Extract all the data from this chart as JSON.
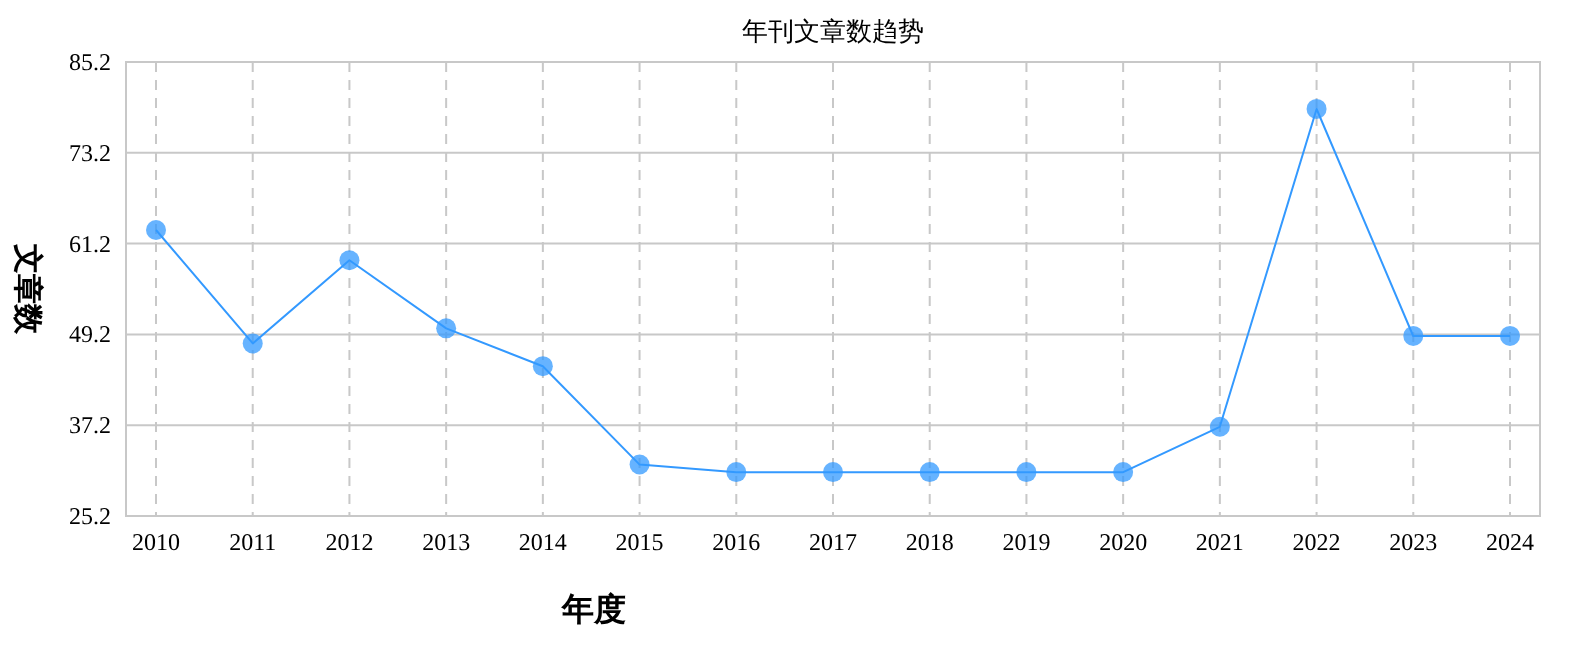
{
  "chart_data": {
    "type": "line",
    "title": "年刊文章数趋势",
    "xlabel": "年度",
    "ylabel": "文章数",
    "categories": [
      "2010",
      "2011",
      "2012",
      "2013",
      "2014",
      "2015",
      "2016",
      "2017",
      "2018",
      "2019",
      "2020",
      "2021",
      "2022",
      "2023",
      "2024"
    ],
    "series": [
      {
        "color": "#3399ff",
        "values": [
          63,
          48,
          59,
          50,
          45,
          32,
          31,
          31,
          31,
          31,
          31,
          37,
          79,
          49,
          49
        ]
      }
    ],
    "ylim": [
      25.2,
      85.2
    ],
    "yticks": [
      25.2,
      37.2,
      49.2,
      61.2,
      73.2,
      85.2
    ],
    "grid": true,
    "marker": "circle",
    "line_style": "solid"
  }
}
